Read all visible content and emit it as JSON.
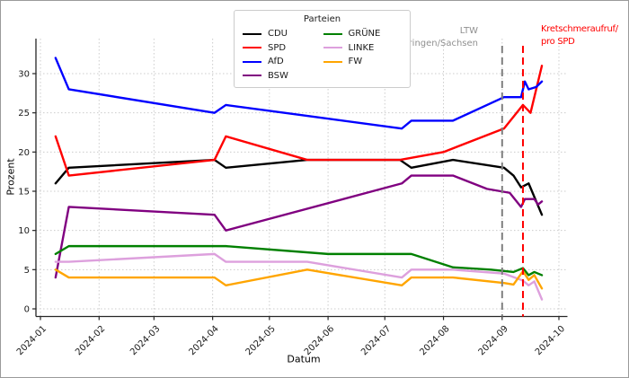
{
  "chart_data": {
    "type": "line",
    "title": "",
    "xlabel": "Datum",
    "ylabel": "Prozent",
    "unit": "%",
    "grid": true,
    "legend": {
      "title": "Parteien",
      "position": "upper center-left",
      "columns": 2
    },
    "x_axis": {
      "tick_dates": [
        "2024-01-01",
        "2024-02-01",
        "2024-03-01",
        "2024-04-01",
        "2024-05-01",
        "2024-06-01",
        "2024-07-01",
        "2024-08-01",
        "2024-09-01",
        "2024-10-01"
      ],
      "tick_labels": [
        "2024-01",
        "2024-02",
        "2024-03",
        "2024-04",
        "2024-05",
        "2024-06",
        "2024-07",
        "2024-08",
        "2024-09",
        "2024-10"
      ],
      "range": [
        "2023-12-29",
        "2024-10-05"
      ]
    },
    "y_axis": {
      "ticks": [
        0,
        5,
        10,
        15,
        20,
        25,
        30
      ],
      "range": [
        -1,
        34.5
      ]
    },
    "series": [
      {
        "name": "CDU",
        "color": "#000000",
        "points": [
          [
            "2024-01-09",
            16
          ],
          [
            "2024-01-16",
            18
          ],
          [
            "2024-04-02",
            19
          ],
          [
            "2024-04-08",
            18
          ],
          [
            "2024-05-21",
            19
          ],
          [
            "2024-07-09",
            19
          ],
          [
            "2024-07-15",
            18
          ],
          [
            "2024-08-06",
            19
          ],
          [
            "2024-09-02",
            18
          ],
          [
            "2024-09-07",
            17
          ],
          [
            "2024-09-11",
            15.5
          ],
          [
            "2024-09-15",
            16
          ],
          [
            "2024-09-22",
            12
          ]
        ]
      },
      {
        "name": "SPD",
        "color": "#ff0000",
        "points": [
          [
            "2024-01-09",
            22
          ],
          [
            "2024-01-16",
            17
          ],
          [
            "2024-04-02",
            19
          ],
          [
            "2024-04-08",
            22
          ],
          [
            "2024-05-21",
            19
          ],
          [
            "2024-07-09",
            19
          ],
          [
            "2024-08-01",
            20
          ],
          [
            "2024-09-02",
            23
          ],
          [
            "2024-09-12",
            26
          ],
          [
            "2024-09-16",
            25
          ],
          [
            "2024-09-22",
            31
          ]
        ]
      },
      {
        "name": "AfD",
        "color": "#0000ff",
        "points": [
          [
            "2024-01-09",
            32
          ],
          [
            "2024-01-16",
            28
          ],
          [
            "2024-04-02",
            25
          ],
          [
            "2024-04-08",
            26
          ],
          [
            "2024-07-10",
            23
          ],
          [
            "2024-07-15",
            24
          ],
          [
            "2024-08-06",
            24
          ],
          [
            "2024-09-02",
            27
          ],
          [
            "2024-09-11",
            27
          ],
          [
            "2024-09-13",
            29
          ],
          [
            "2024-09-15",
            28
          ],
          [
            "2024-09-19",
            28.3
          ],
          [
            "2024-09-22",
            29
          ]
        ]
      },
      {
        "name": "BSW",
        "color": "#800080",
        "points": [
          [
            "2024-01-09",
            4
          ],
          [
            "2024-01-16",
            13
          ],
          [
            "2024-04-02",
            12
          ],
          [
            "2024-04-08",
            10
          ],
          [
            "2024-07-10",
            16
          ],
          [
            "2024-07-15",
            17
          ],
          [
            "2024-08-06",
            17
          ],
          [
            "2024-08-24",
            15.3
          ],
          [
            "2024-09-05",
            14.8
          ],
          [
            "2024-09-11",
            13
          ],
          [
            "2024-09-13",
            14
          ],
          [
            "2024-09-18",
            14
          ],
          [
            "2024-09-20",
            13.3
          ],
          [
            "2024-09-22",
            13.7
          ]
        ]
      },
      {
        "name": "GRÜNE",
        "color": "#008000",
        "points": [
          [
            "2024-01-09",
            7
          ],
          [
            "2024-01-16",
            8
          ],
          [
            "2024-04-08",
            8
          ],
          [
            "2024-06-01",
            7
          ],
          [
            "2024-07-15",
            7
          ],
          [
            "2024-08-06",
            5.3
          ],
          [
            "2024-08-26",
            5
          ],
          [
            "2024-09-07",
            4.7
          ],
          [
            "2024-09-12",
            5.2
          ],
          [
            "2024-09-15",
            4.3
          ],
          [
            "2024-09-18",
            4.7
          ],
          [
            "2024-09-22",
            4.3
          ]
        ]
      },
      {
        "name": "LINKE",
        "color": "#dda0dd",
        "points": [
          [
            "2024-01-09",
            6
          ],
          [
            "2024-01-16",
            6
          ],
          [
            "2024-04-02",
            7
          ],
          [
            "2024-04-08",
            6
          ],
          [
            "2024-05-21",
            6
          ],
          [
            "2024-07-10",
            4
          ],
          [
            "2024-07-15",
            5
          ],
          [
            "2024-08-06",
            5
          ],
          [
            "2024-09-02",
            4.5
          ],
          [
            "2024-09-12",
            3.6
          ],
          [
            "2024-09-15",
            3
          ],
          [
            "2024-09-18",
            3.5
          ],
          [
            "2024-09-22",
            1.2
          ]
        ]
      },
      {
        "name": "FW",
        "color": "#ffa500",
        "points": [
          [
            "2024-01-09",
            5
          ],
          [
            "2024-01-16",
            4
          ],
          [
            "2024-04-02",
            4
          ],
          [
            "2024-04-08",
            3
          ],
          [
            "2024-05-21",
            5
          ],
          [
            "2024-07-10",
            3
          ],
          [
            "2024-07-15",
            4
          ],
          [
            "2024-08-06",
            4
          ],
          [
            "2024-09-02",
            3.3
          ],
          [
            "2024-09-07",
            3.1
          ],
          [
            "2024-09-12",
            4.8
          ],
          [
            "2024-09-15",
            3.7
          ],
          [
            "2024-09-18",
            4.3
          ],
          [
            "2024-09-22",
            2.6
          ]
        ]
      }
    ],
    "vlines": [
      {
        "x": "2024-09-01",
        "color": "#808080",
        "style": "dashed",
        "label_lines": [
          "LTW",
          "Thüringen/Sachsen"
        ],
        "label_color": "#909090",
        "label_align": "right"
      },
      {
        "x": "2024-09-12",
        "color": "#ff0000",
        "style": "dashed",
        "label_lines": [
          "Kretschmeraufruf/",
          "pro SPD"
        ],
        "label_color": "#ff0000",
        "label_align": "left"
      }
    ]
  }
}
